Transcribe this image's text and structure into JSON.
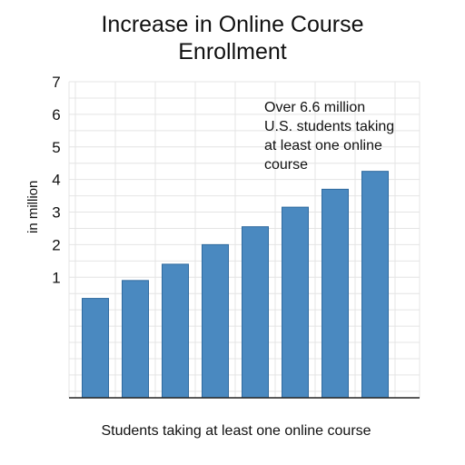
{
  "chart_data": {
    "type": "bar",
    "title_lines": [
      "Increase in Online Course",
      "Enrollment"
    ],
    "ylabel": "in million",
    "xlabel": "Students taking at least one online course",
    "annotation_lines": [
      "Over 6.6 million",
      "U.S. students taking",
      "at least one online",
      "course"
    ],
    "y_ticks": [
      "1",
      "2",
      "3",
      "4",
      "5",
      "6",
      "7"
    ],
    "ylim": [
      -2.7,
      7
    ],
    "values": [
      0.35,
      0.9,
      1.4,
      2.0,
      2.55,
      3.15,
      3.7,
      4.25
    ],
    "grid": true,
    "legend": "none",
    "bar_color": "#4a89c0",
    "bar_edge_color": "#2f6a9f"
  }
}
